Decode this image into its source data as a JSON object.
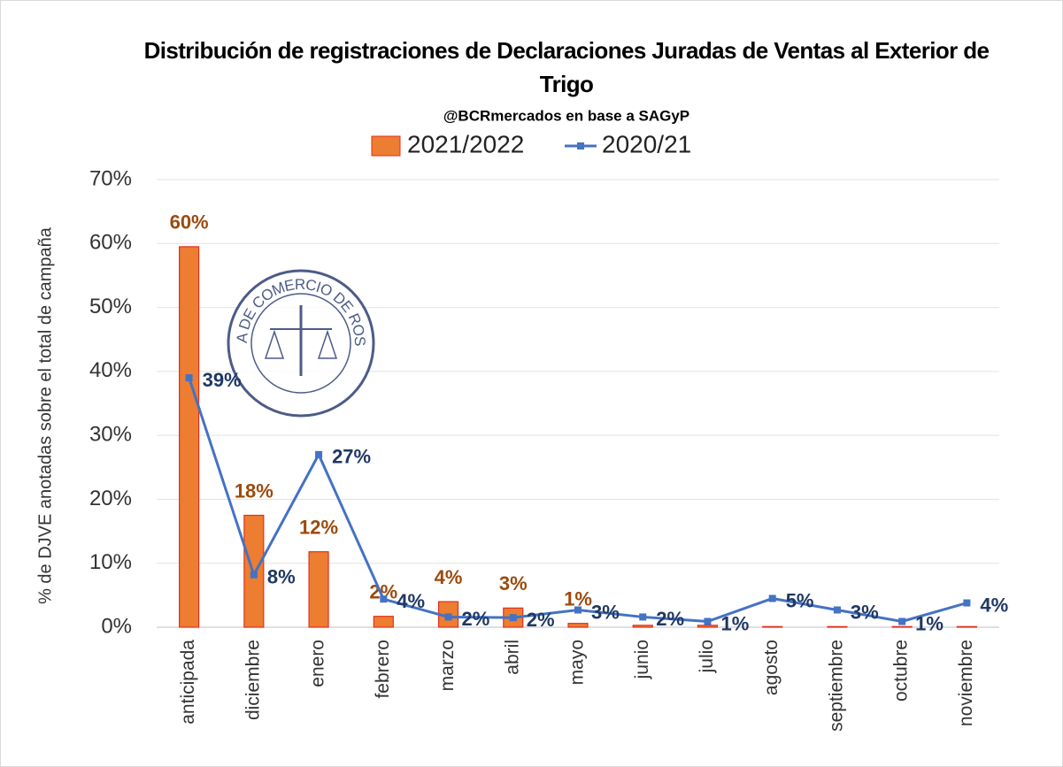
{
  "chart_data": {
    "type": "bar-line",
    "title": "Distribución de registraciones de Declaraciones Juradas de Ventas al Exterior de Trigo",
    "subtitle": "@BCRmercados en base a SAGyP",
    "watermark": "BOLSA DE COMERCIO DE ROSARIO",
    "y_label": "% de DJVE anotadas sobre el total de campaña",
    "categories": [
      "anticipada",
      "diciembre",
      "enero",
      "febrero",
      "marzo",
      "abril",
      "mayo",
      "junio",
      "julio",
      "agosto",
      "septiembre",
      "octubre",
      "noviembre"
    ],
    "series": [
      {
        "name": "2021/2022",
        "type": "bar",
        "color": "#ed7d31",
        "stroke": "#e0301e",
        "values": [
          59.5,
          17.5,
          11.8,
          1.7,
          4.0,
          3.0,
          0.6,
          0.3,
          0.3,
          0.1,
          0.1,
          0.1,
          0.1
        ],
        "value_labels": [
          "60%",
          "18%",
          "12%",
          "2%",
          "4%",
          "3%",
          "1%",
          null,
          null,
          null,
          null,
          null,
          null
        ]
      },
      {
        "name": "2020/21",
        "type": "line",
        "color": "#4472c4",
        "values": [
          39.0,
          8.2,
          27.0,
          4.4,
          1.6,
          1.5,
          2.7,
          1.6,
          0.9,
          4.5,
          2.7,
          0.9,
          3.8
        ],
        "value_labels": [
          "39%",
          "8%",
          "27%",
          "4%",
          "2%",
          "2%",
          "3%",
          "2%",
          "1%",
          "5%",
          "3%",
          "1%",
          "4%"
        ]
      }
    ],
    "ylim": [
      0,
      70
    ],
    "yticks": [
      {
        "value": 0,
        "label": "0%"
      },
      {
        "value": 10,
        "label": "10%"
      },
      {
        "value": 20,
        "label": "20%"
      },
      {
        "value": 30,
        "label": "30%"
      },
      {
        "value": 40,
        "label": "40%"
      },
      {
        "value": 50,
        "label": "50%"
      },
      {
        "value": 60,
        "label": "60%"
      },
      {
        "value": 70,
        "label": "70%"
      }
    ],
    "grid": true
  }
}
